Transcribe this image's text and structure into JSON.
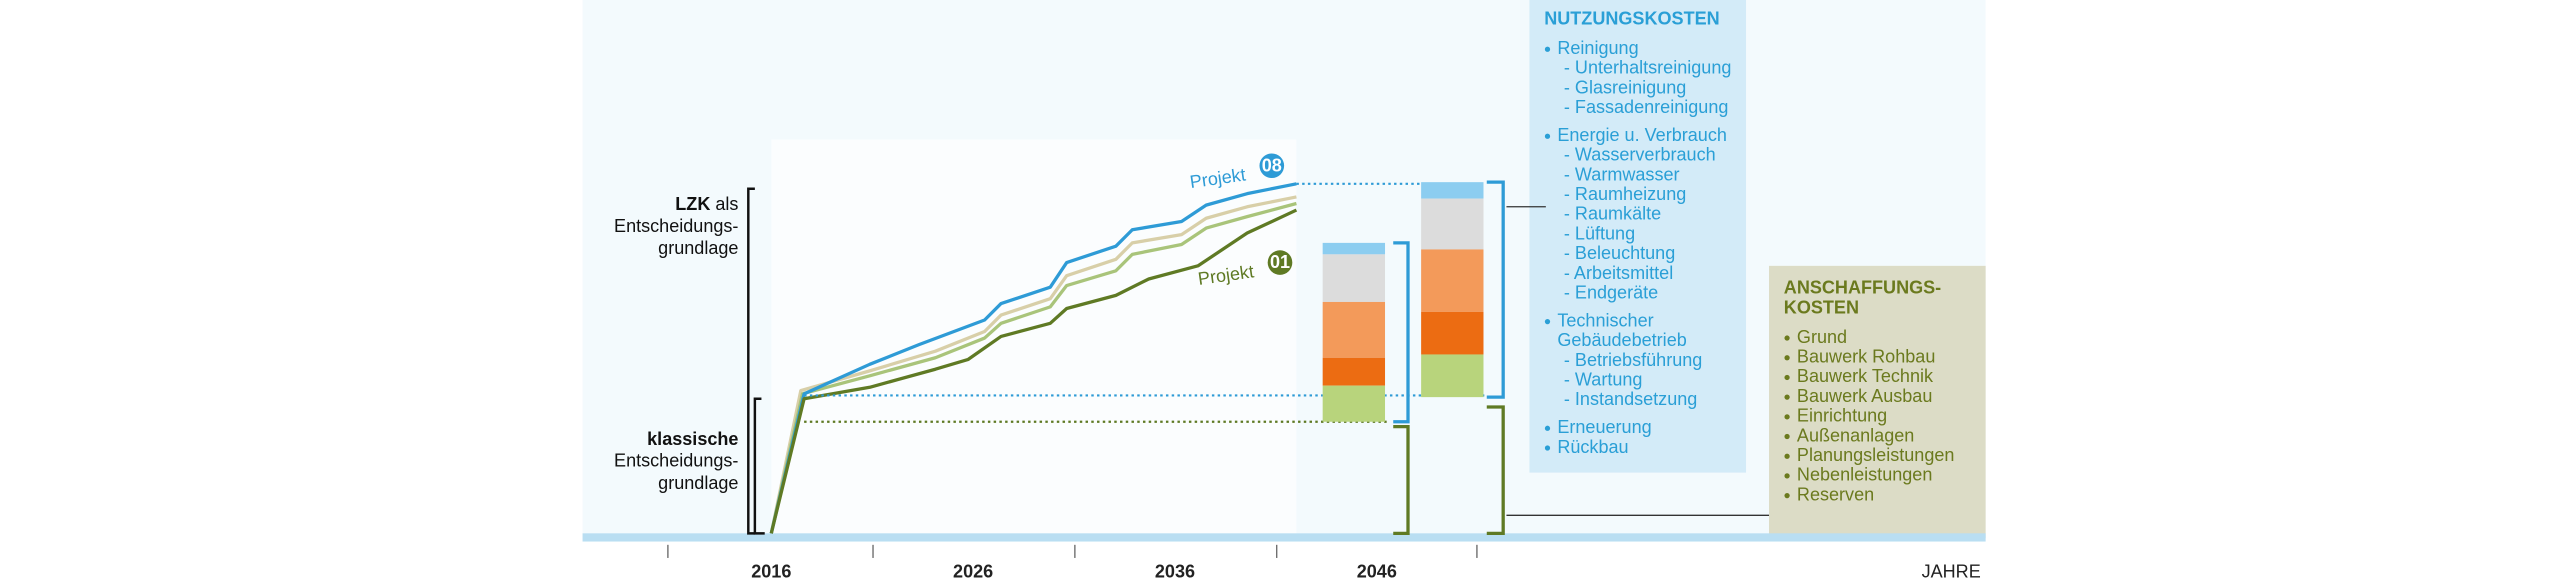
{
  "axis": {
    "ticks": [
      "2016",
      "2026",
      "2036",
      "2046"
    ],
    "label": "JAHRE"
  },
  "left_labels": {
    "lzk": {
      "bold": "LZK",
      "rest": " als",
      "lines": [
        "Entscheidungs-",
        "grundlage"
      ]
    },
    "klassisch": {
      "bold": "klassische",
      "lines": [
        "Entscheidungs-",
        "grundlage"
      ]
    }
  },
  "projects": [
    {
      "label": "Projekt",
      "badge": "08"
    },
    {
      "label": "Projekt",
      "badge": "01"
    }
  ],
  "nutzungskosten": {
    "title": "NUTZUNGSKOSTEN",
    "groups": [
      {
        "lines": [
          "Reinigung"
        ],
        "sub": [
          "- Unterhaltsreinigung",
          "- Glasreinigung",
          "- Fassadenreinigung"
        ]
      },
      {
        "lines": [
          "Energie u. Verbrauch"
        ],
        "sub": [
          "- Wasserverbrauch",
          "- Warmwasser",
          "- Raumheizung",
          "- Raumkälte",
          "- Lüftung",
          "- Beleuchtung",
          "- Arbeitsmittel",
          "- Endgeräte"
        ]
      },
      {
        "lines": [
          "Technischer",
          "Gebäudebetrieb"
        ],
        "sub": [
          "- Betriebsführung",
          "- Wartung",
          "- Instandsetzung"
        ]
      },
      {
        "lines": [
          "Erneuerung"
        ]
      },
      {
        "lines": [
          "Rückbau"
        ]
      }
    ]
  },
  "anschaffungskosten": {
    "title": [
      "ANSCHAFFUNGS-",
      "KOSTEN"
    ],
    "items": [
      "Grund",
      "Bauwerk Rohbau",
      "Bauwerk Technik",
      "Bauwerk Ausbau",
      "Einrichtung",
      "Außenanlagen",
      "Planungsleistungen",
      "Nebenleistungen",
      "Reserven"
    ]
  }
}
